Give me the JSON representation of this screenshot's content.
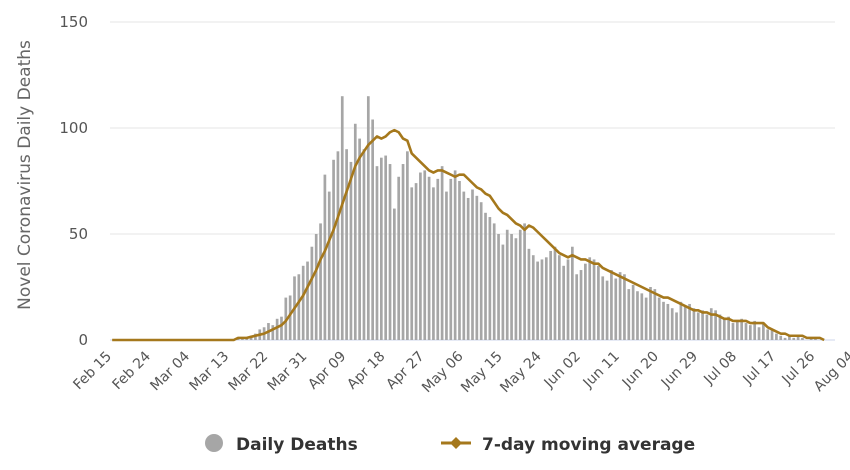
{
  "chart_data": {
    "type": "bar",
    "title": "",
    "xlabel": "",
    "ylabel": "Novel Coronavirus Daily Deaths",
    "ylim": [
      0,
      150
    ],
    "yticks": [
      0,
      50,
      100,
      150
    ],
    "grid": true,
    "legend_position": "bottom",
    "x_tick_labels": [
      "Feb 15",
      "Feb 24",
      "Mar 04",
      "Mar 13",
      "Mar 22",
      "Mar 31",
      "Apr 09",
      "Apr 18",
      "Apr 27",
      "May 06",
      "May 15",
      "May 24",
      "Jun 02",
      "Jun 11",
      "Jun 20",
      "Jun 29",
      "Jul 08",
      "Jul 17",
      "Jul 26",
      "Aug 04"
    ],
    "start_date": "Feb 15",
    "colors": {
      "bars": "#a6a6a6",
      "line": "#a5781c",
      "grid": "#e6e6e6",
      "axis": "#ccd6eb"
    },
    "series": [
      {
        "name": "Daily Deaths",
        "kind": "bar",
        "values": [
          0,
          0,
          0,
          0,
          0,
          0,
          0,
          0,
          0,
          0,
          0,
          0,
          0,
          0,
          0,
          0,
          0,
          0,
          0,
          0,
          0,
          0,
          0,
          0,
          0,
          0,
          0,
          0,
          0,
          1,
          1,
          1,
          2,
          3,
          5,
          6,
          8,
          7,
          10,
          11,
          20,
          21,
          30,
          31,
          35,
          37,
          44,
          50,
          55,
          78,
          70,
          85,
          89,
          115,
          90,
          84,
          102,
          95,
          90,
          115,
          104,
          82,
          86,
          87,
          83,
          62,
          77,
          83,
          89,
          72,
          74,
          79,
          80,
          77,
          72,
          76,
          82,
          70,
          76,
          80,
          75,
          70,
          67,
          71,
          68,
          65,
          60,
          58,
          55,
          50,
          45,
          52,
          50,
          48,
          52,
          55,
          43,
          40,
          37,
          38,
          39,
          42,
          44,
          40,
          35,
          38,
          44,
          31,
          33,
          36,
          39,
          38,
          35,
          30,
          28,
          33,
          29,
          32,
          31,
          24,
          26,
          23,
          22,
          20,
          25,
          24,
          20,
          18,
          17,
          15,
          13,
          18,
          16,
          17,
          15,
          13,
          14,
          12,
          15,
          14,
          12,
          10,
          11,
          8,
          9,
          10,
          8,
          7,
          9,
          6,
          8,
          5,
          5,
          3,
          2,
          1,
          2,
          1,
          2,
          1,
          0,
          1,
          1,
          0,
          0,
          0,
          0
        ],
        "color": "#a6a6a6"
      },
      {
        "name": "7-day moving average",
        "kind": "line",
        "values": [
          0,
          0,
          0,
          0,
          0,
          0,
          0,
          0,
          0,
          0,
          0,
          0,
          0,
          0,
          0,
          0,
          0,
          0,
          0,
          0,
          0,
          0,
          0,
          0,
          0,
          0,
          0,
          0,
          0,
          1,
          1,
          1,
          1.5,
          2,
          2.5,
          3,
          4,
          5,
          6,
          7,
          9,
          12,
          15,
          18,
          21,
          25,
          29,
          33,
          38,
          42,
          47,
          52,
          58,
          64,
          70,
          76,
          82,
          86,
          89,
          92,
          94,
          96,
          95,
          96,
          98,
          99,
          98,
          95,
          94,
          88,
          86,
          84,
          82,
          80,
          79,
          80,
          80,
          79,
          78,
          77,
          78,
          78,
          76,
          74,
          72,
          71,
          69,
          68,
          65,
          62,
          60,
          59,
          57,
          55,
          54,
          52,
          54,
          53,
          51,
          49,
          47,
          45,
          43,
          41,
          40,
          39,
          40,
          39,
          38,
          38,
          37,
          36,
          36,
          34,
          33,
          32,
          31,
          30,
          29,
          28,
          27,
          26,
          25,
          24,
          23,
          22,
          21,
          20,
          20,
          19,
          18,
          17,
          16,
          15,
          14,
          14,
          13,
          13,
          12,
          12,
          11,
          10,
          10,
          9,
          9,
          9,
          9,
          8,
          8,
          8,
          8,
          6,
          5,
          4,
          3,
          3,
          2,
          2,
          2,
          2,
          1,
          1,
          1,
          1,
          0
        ],
        "color": "#a5781c"
      }
    ]
  }
}
